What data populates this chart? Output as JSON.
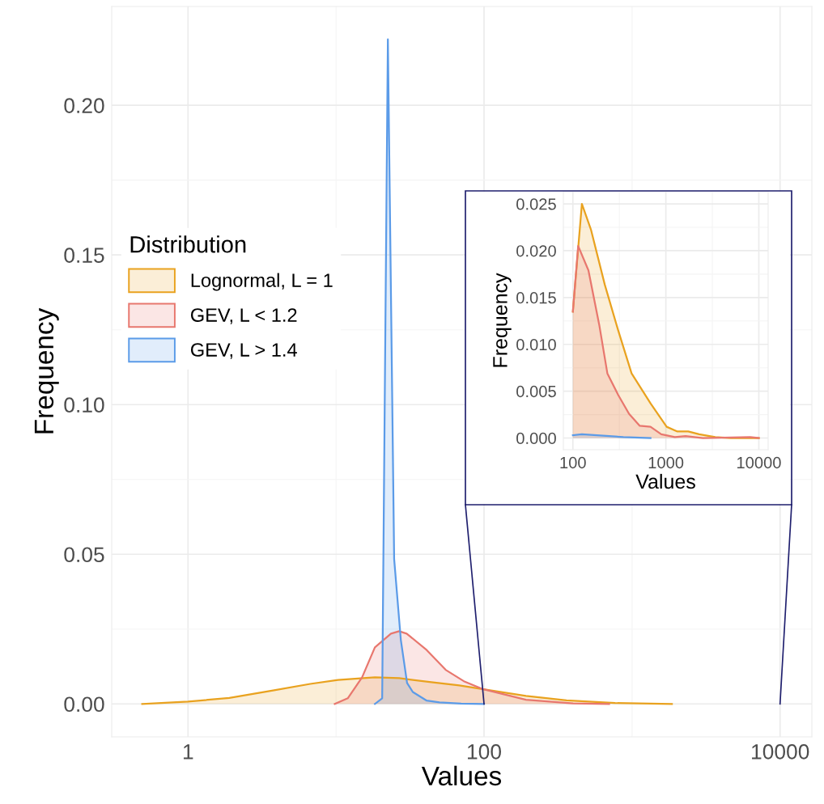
{
  "chart_data": [
    {
      "type": "area",
      "xlabel": "Values",
      "ylabel": "Frequency",
      "legend_title": "Distribution",
      "legend": "left",
      "log": "x",
      "grid": true,
      "xlim": [
        0.305,
        16400
      ],
      "ylim": [
        -0.011,
        0.233
      ],
      "xticks": [
        1,
        100,
        10000
      ],
      "yticks": [
        {
          "value": 0,
          "label": "0.00"
        },
        {
          "value": 0.05,
          "label": "0.05"
        },
        {
          "value": 0.1,
          "label": "0.10"
        },
        {
          "value": 0.15,
          "label": "0.15"
        },
        {
          "value": 0.2,
          "label": "0.20"
        }
      ],
      "series": [
        {
          "name": "Lognormal, L = 1",
          "color": "#e9a21f",
          "x": [
            0.49,
            1,
            1.9,
            3.75,
            6.7,
            10.3,
            18.3,
            26.7,
            44,
            68,
            99,
            192,
            361,
            768,
            1860
          ],
          "values": [
            0,
            0.0008,
            0.002,
            0.0045,
            0.0067,
            0.008,
            0.0089,
            0.0086,
            0.0073,
            0.0062,
            0.0049,
            0.0027,
            0.0012,
            0.0003,
            0
          ]
        },
        {
          "name": "GEV, L < 1.2",
          "color": "#e8776e",
          "x": [
            9.8,
            12,
            15,
            18.3,
            23.5,
            26.7,
            30,
            41,
            55,
            73,
            99,
            192,
            400,
            700
          ],
          "values": [
            0,
            0.0019,
            0.0089,
            0.0189,
            0.0235,
            0.0243,
            0.0235,
            0.018,
            0.0114,
            0.0076,
            0.0049,
            0.0014,
            0.0002,
            0
          ]
        },
        {
          "name": "GEV, L > 1.4",
          "color": "#5b9be8",
          "x": [
            18.3,
            20.5,
            22.4,
            24.7,
            27.4,
            30.2,
            33,
            41,
            50,
            70,
            100
          ],
          "values": [
            0,
            0.0019,
            0.222,
            0.0484,
            0.0214,
            0.007,
            0.004,
            0.0011,
            0.0005,
            0.0001,
            0
          ]
        }
      ]
    },
    {
      "type": "area",
      "xlabel": "Values",
      "ylabel": "Frequency",
      "log": "x",
      "grid": true,
      "xlim": [
        79,
        12600
      ],
      "ylim": [
        -0.00125,
        0.0263
      ],
      "xticks": [
        100,
        1000,
        10000
      ],
      "yticks": [
        {
          "value": 0,
          "label": "0.000"
        },
        {
          "value": 0.005,
          "label": "0.005"
        },
        {
          "value": 0.01,
          "label": "0.010"
        },
        {
          "value": 0.015,
          "label": "0.015"
        },
        {
          "value": 0.02,
          "label": "0.020"
        },
        {
          "value": 0.025,
          "label": "0.025"
        }
      ],
      "series": [
        {
          "color": "#e9a21f",
          "x": [
            100,
            125,
            157,
            220,
            307,
            428,
            684,
            1020,
            1330,
            1740,
            2280,
            3400,
            5000,
            10000
          ],
          "values": [
            0.0135,
            0.025,
            0.0222,
            0.0164,
            0.0115,
            0.0069,
            0.0037,
            0.0012,
            0.0007,
            0.0007,
            0.0004,
            0.0001,
            0,
            0
          ]
        },
        {
          "color": "#e8776e",
          "x": [
            100,
            114,
            147,
            192,
            235,
            307,
            401,
            524,
            684,
            892,
            1250,
            1630,
            2500,
            8070,
            10000
          ],
          "values": [
            0.0135,
            0.0205,
            0.0179,
            0.0121,
            0.0069,
            0.0046,
            0.0026,
            0.0013,
            0.0012,
            0.0004,
            0.0001,
            0.0002,
            0,
            0.0001,
            0
          ]
        },
        {
          "color": "#5b9be8",
          "x": [
            100,
            125,
            350,
            684
          ],
          "values": [
            0.0003,
            0.0004,
            0.0001,
            0
          ]
        }
      ]
    }
  ]
}
